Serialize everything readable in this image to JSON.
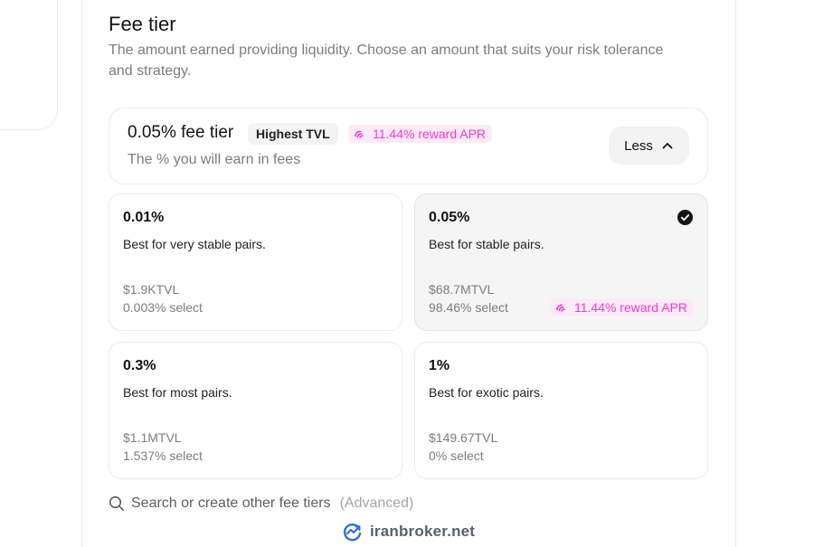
{
  "header": {
    "title": "Fee tier",
    "description": "The amount earned providing liquidity. Choose an amount that suits your risk tolerance and strategy."
  },
  "selected": {
    "tier_label": "0.05% fee tier",
    "badge": "Highest TVL",
    "reward": "11.44% reward APR",
    "subtitle": "The % you will earn in fees",
    "toggle_label": "Less"
  },
  "tiers": [
    {
      "pct": "0.01%",
      "desc": "Best for very stable pairs.",
      "tvl": "$1.9KTVL",
      "select": "0.003% select"
    },
    {
      "pct": "0.05%",
      "desc": "Best for stable pairs.",
      "tvl": "$68.7MTVL",
      "select": "98.46% select",
      "reward": "11.44% reward APR",
      "selected": true
    },
    {
      "pct": "0.3%",
      "desc": "Best for most pairs.",
      "tvl": "$1.1MTVL",
      "select": "1.537% select"
    },
    {
      "pct": "1%",
      "desc": "Best for exotic pairs.",
      "tvl": "$149.67TVL",
      "select": "0% select"
    }
  ],
  "search": {
    "label": "Search or create other fee tiers",
    "advanced": "(Advanced)"
  },
  "watermark": {
    "text": "iranbroker.net"
  },
  "icons": {
    "reward": "reward-star-icon",
    "toggle": "chevron-up-icon",
    "check": "check-circle-icon",
    "search": "search-icon",
    "logo": "iranbroker-logo-icon"
  },
  "colors": {
    "accent_pink": "#f33bd1",
    "pink_bg": "#fdeaf8",
    "muted_text": "#7d7d7d"
  }
}
